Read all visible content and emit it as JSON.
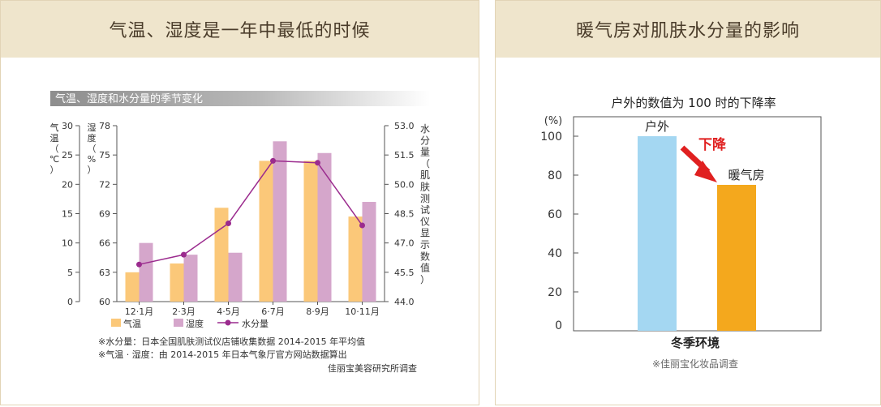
{
  "left_panel": {
    "header": "气温、湿度是一年中最低的时候",
    "subtitle": "气温、湿度和水分量的季节变化",
    "axis_temp_label": [
      "气",
      "温",
      "（",
      "℃",
      "）"
    ],
    "axis_humidity_label": [
      "湿",
      "度",
      "（",
      "%",
      "）"
    ],
    "axis_moisture_label": [
      "水",
      "分",
      "量",
      "（",
      "肌",
      "肤",
      "测",
      "试",
      "仪",
      "显",
      "示",
      "数",
      "值",
      "）"
    ],
    "notes": [
      "※水分量：日本全国肌肤测试仪店铺收集数据 2014-2015 年平均值",
      "※气温 · 湿度：由 2014-2015 年日本气象厅官方网站数据算出"
    ],
    "source": "佳丽宝美容研究所调查"
  },
  "right_panel": {
    "header": "暖气房对肌肤水分量的影响",
    "arrow_label": "下降",
    "arrow_color": "#e02020",
    "source": "※佳丽宝化妆品调查"
  },
  "chart_data": [
    {
      "type": "bar",
      "title": "",
      "categories": [
        "12·1月",
        "2·3月",
        "4·5月",
        "6·7月",
        "8·9月",
        "10·11月"
      ],
      "series": [
        {
          "name": "气温",
          "type": "bar",
          "axis": "left",
          "color": "#fbc879",
          "values": [
            5,
            6.5,
            16,
            24,
            24,
            14.5
          ]
        },
        {
          "name": "湿度",
          "type": "bar",
          "axis": "humidity",
          "color": "#d5a6cb",
          "values": [
            66,
            64.8,
            65,
            76.4,
            75.2,
            70.2
          ]
        },
        {
          "name": "水分量",
          "type": "line",
          "axis": "right",
          "color": "#9b2b8e",
          "values": [
            45.9,
            46.4,
            48.0,
            51.2,
            51.1,
            47.9
          ]
        }
      ],
      "y_left": {
        "label": "气温（℃）",
        "ticks": [
          0,
          5,
          10,
          15,
          20,
          25,
          30
        ],
        "lim": [
          0,
          30
        ]
      },
      "y_humidity": {
        "label": "湿度（%）",
        "ticks": [
          60,
          63,
          66,
          69,
          72,
          75,
          78
        ],
        "lim": [
          60,
          78
        ]
      },
      "y_right": {
        "label": "水分量（肌肤测试仪显示数值）",
        "ticks": [
          "44.0",
          "45.5",
          "47.0",
          "48.5",
          "50.0",
          "51.5",
          "53.0"
        ],
        "lim": [
          44,
          53
        ]
      },
      "grid": false,
      "legend": "bottom"
    },
    {
      "type": "bar",
      "title": "户外的数值为 100 时的下降率",
      "ylabel": "(%)",
      "xlabel": "冬季环境",
      "categories": [
        "户外",
        "暖气房"
      ],
      "values": [
        100,
        75
      ],
      "colors": [
        "#a4d7f2",
        "#f4a81d"
      ],
      "y_ticks": [
        0,
        20,
        40,
        60,
        80,
        100
      ],
      "ylim": [
        0,
        110
      ],
      "grid": false
    }
  ]
}
